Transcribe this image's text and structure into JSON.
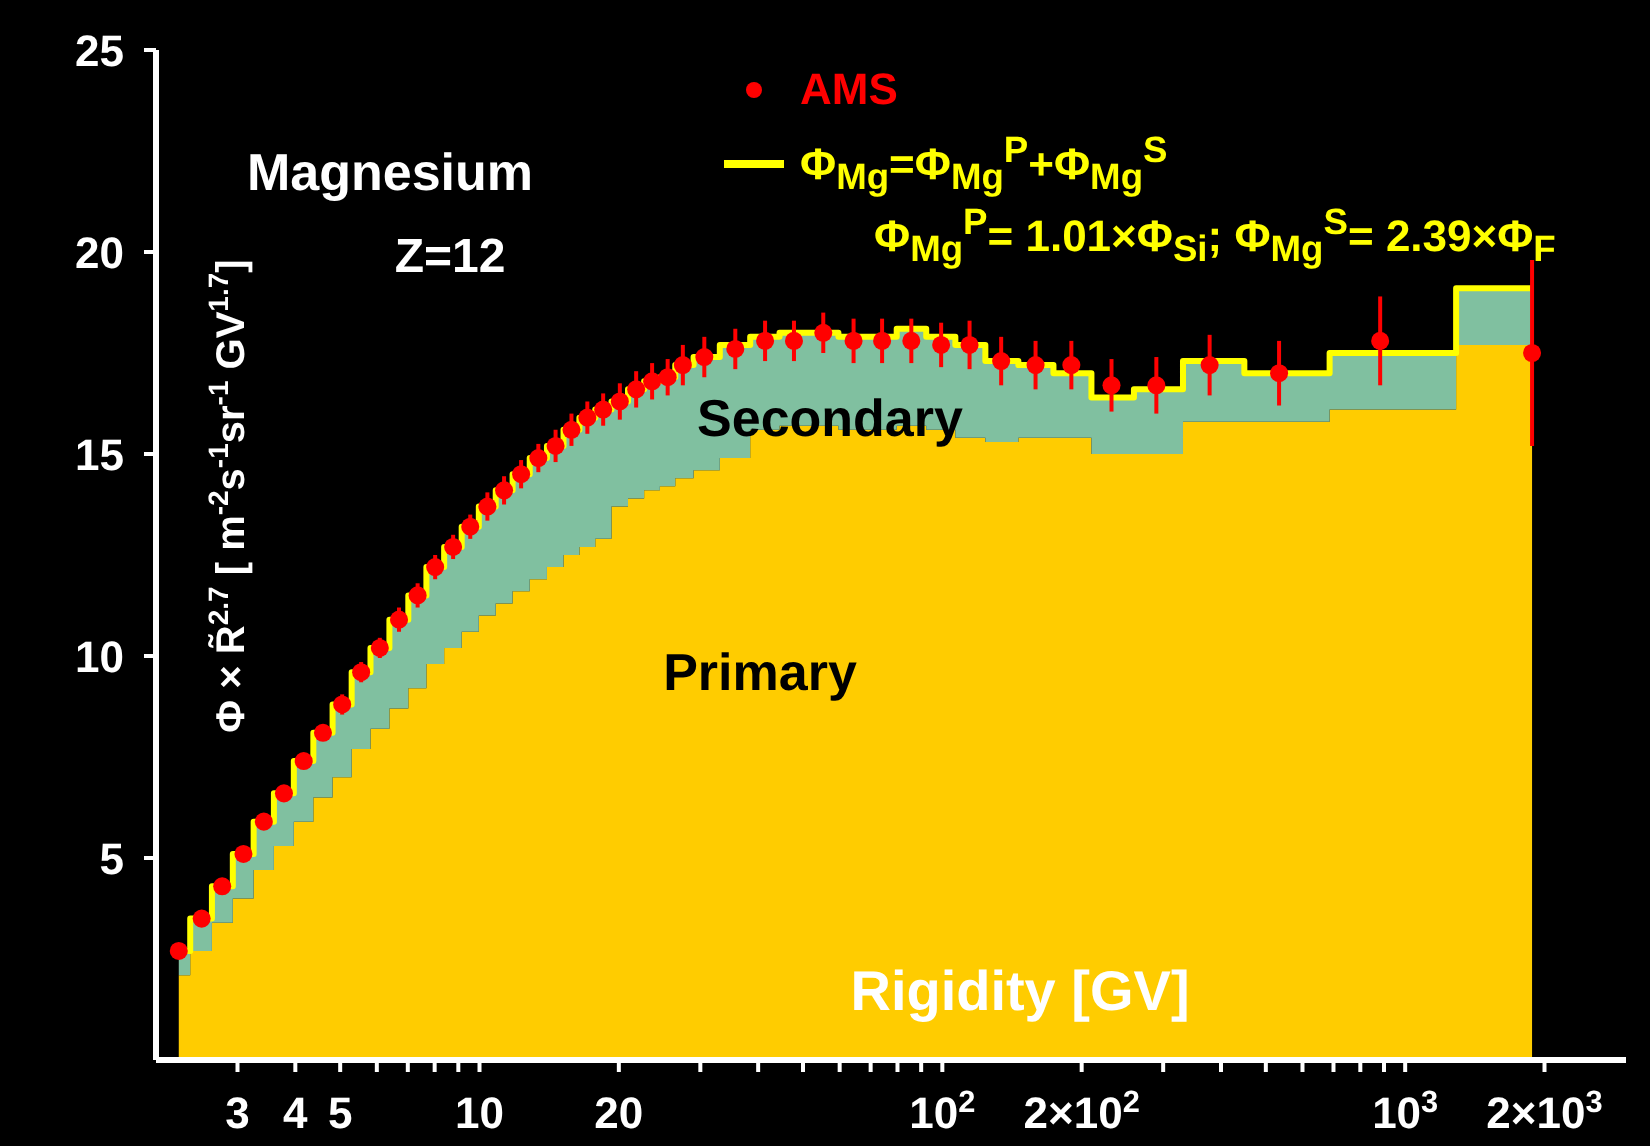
{
  "chart_data": {
    "type": "area",
    "title": "Magnesium",
    "subtitle": "Z=12",
    "xlabel": "Rigidity [GV]",
    "ylabel": "Φ × R̃$^{2.7}$ [ m$^{-2}$s$^{-1}$sr$^{-1}$ GV$^{1.7}$]",
    "annotations": [
      "Φ$_{Mg}$$^{P}$= 1.01×Φ$_{Si}$; Φ$_{Mg}$$^{S}$= 2.39×Φ$_{F}$"
    ],
    "x": [
      2.24,
      2.51,
      2.78,
      3.09,
      3.42,
      3.78,
      4.17,
      4.59,
      5.05,
      5.55,
      6.09,
      6.7,
      7.35,
      8.02,
      8.77,
      9.55,
      10.4,
      11.3,
      12.3,
      13.4,
      14.6,
      15.8,
      17.1,
      18.5,
      20.1,
      21.8,
      23.6,
      25.5,
      27.5,
      30.6,
      35.7,
      41.4,
      47.8,
      55.3,
      64.3,
      74.1,
      85.7,
      99.4,
      114.5,
      134,
      159,
      190,
      232,
      290,
      378,
      534,
      883,
      1880
    ],
    "stacked": true,
    "series": [
      {
        "name": "Primary",
        "color": "#ffcc00",
        "values": [
          2.1,
          2.7,
          3.4,
          4.0,
          4.7,
          5.3,
          5.9,
          6.5,
          7.0,
          7.7,
          8.2,
          8.7,
          9.2,
          9.8,
          10.2,
          10.6,
          11.0,
          11.3,
          11.6,
          11.9,
          12.2,
          12.5,
          12.7,
          12.9,
          13.7,
          13.9,
          14.1,
          14.2,
          14.4,
          14.6,
          14.9,
          15.6,
          15.7,
          15.7,
          15.6,
          15.6,
          15.7,
          15.6,
          15.4,
          15.3,
          15.4,
          15.4,
          15.0,
          15.0,
          15.8,
          15.8,
          16.1,
          17.7
        ]
      },
      {
        "name": "Secondary",
        "color": "#80c0a0",
        "values": [
          0.6,
          0.8,
          0.9,
          1.1,
          1.2,
          1.3,
          1.5,
          1.6,
          1.8,
          1.9,
          2.0,
          2.2,
          2.3,
          2.4,
          2.5,
          2.6,
          2.7,
          2.8,
          2.9,
          3.0,
          3.0,
          3.1,
          3.2,
          3.2,
          2.6,
          2.7,
          2.7,
          2.7,
          2.8,
          2.8,
          2.8,
          2.3,
          2.3,
          2.3,
          2.3,
          2.3,
          2.4,
          2.3,
          2.3,
          2.0,
          1.8,
          1.6,
          1.4,
          1.6,
          1.5,
          1.2,
          1.4,
          1.4
        ]
      },
      {
        "name": "Φ$_{Mg}$=Φ$_{Mg}$$^{P}$+Φ$_{Mg}$$^{S}$",
        "type": "step",
        "color": "#ffff00",
        "values": [
          2.7,
          3.5,
          4.3,
          5.1,
          5.9,
          6.6,
          7.4,
          8.1,
          8.8,
          9.6,
          10.2,
          10.9,
          11.5,
          12.2,
          12.7,
          13.2,
          13.7,
          14.1,
          14.5,
          14.9,
          15.2,
          15.6,
          15.9,
          16.1,
          16.3,
          16.6,
          16.8,
          16.9,
          17.2,
          17.4,
          17.7,
          17.9,
          18.0,
          18.0,
          17.9,
          17.9,
          18.1,
          17.9,
          17.7,
          17.3,
          17.2,
          17.0,
          16.4,
          16.6,
          17.3,
          17.0,
          17.5,
          19.1
        ]
      },
      {
        "name": "AMS",
        "type": "scatter",
        "marker": "circle",
        "color": "#ff0000",
        "values": [
          2.7,
          3.5,
          4.3,
          5.1,
          5.9,
          6.6,
          7.4,
          8.1,
          8.8,
          9.6,
          10.2,
          10.9,
          11.5,
          12.2,
          12.7,
          13.2,
          13.7,
          14.1,
          14.5,
          14.9,
          15.2,
          15.6,
          15.9,
          16.1,
          16.3,
          16.6,
          16.8,
          16.9,
          17.2,
          17.4,
          17.6,
          17.8,
          17.8,
          18.0,
          17.8,
          17.8,
          17.8,
          17.7,
          17.7,
          17.3,
          17.2,
          17.2,
          16.7,
          16.7,
          17.2,
          17.0,
          17.8,
          17.5
        ],
        "errors": [
          0.15,
          0.15,
          0.15,
          0.15,
          0.2,
          0.2,
          0.2,
          0.2,
          0.25,
          0.25,
          0.25,
          0.3,
          0.3,
          0.3,
          0.3,
          0.3,
          0.35,
          0.35,
          0.35,
          0.35,
          0.4,
          0.4,
          0.4,
          0.4,
          0.45,
          0.45,
          0.45,
          0.45,
          0.5,
          0.5,
          0.5,
          0.5,
          0.5,
          0.5,
          0.55,
          0.55,
          0.55,
          0.55,
          0.6,
          0.6,
          0.6,
          0.6,
          0.65,
          0.7,
          0.75,
          0.8,
          1.1,
          2.3
        ]
      }
    ],
    "log": "x",
    "legend": "top right",
    "xlim": [
      2,
      3000
    ],
    "xticks": [
      3,
      4,
      5,
      {
        "value": 6,
        "label": null
      },
      {
        "value": 7,
        "label": null
      },
      {
        "value": 8,
        "label": null
      },
      {
        "value": 9,
        "label": null
      },
      10,
      20,
      {
        "value": 30,
        "label": null
      },
      {
        "value": 40,
        "label": null
      },
      {
        "value": 50,
        "label": null
      },
      {
        "value": 60,
        "label": null
      },
      {
        "value": 70,
        "label": null
      },
      {
        "value": 80,
        "label": null
      },
      {
        "value": 90,
        "label": null
      },
      {
        "value": 100,
        "label": "10$^{2}$"
      },
      {
        "value": 200,
        "label": "2×10$^{2}$"
      },
      {
        "value": 300,
        "label": null
      },
      {
        "value": 400,
        "label": null
      },
      {
        "value": 500,
        "label": null
      },
      {
        "value": 600,
        "label": null
      },
      {
        "value": 700,
        "label": null
      },
      {
        "value": 800,
        "label": null
      },
      {
        "value": 900,
        "label": null
      },
      {
        "value": 1000,
        "label": "10$^{3}$"
      },
      {
        "value": 2000,
        "label": "2×10$^{3}$"
      }
    ],
    "ylim": [
      0,
      25
    ],
    "yticks": [
      5,
      10,
      15,
      20,
      25
    ]
  }
}
